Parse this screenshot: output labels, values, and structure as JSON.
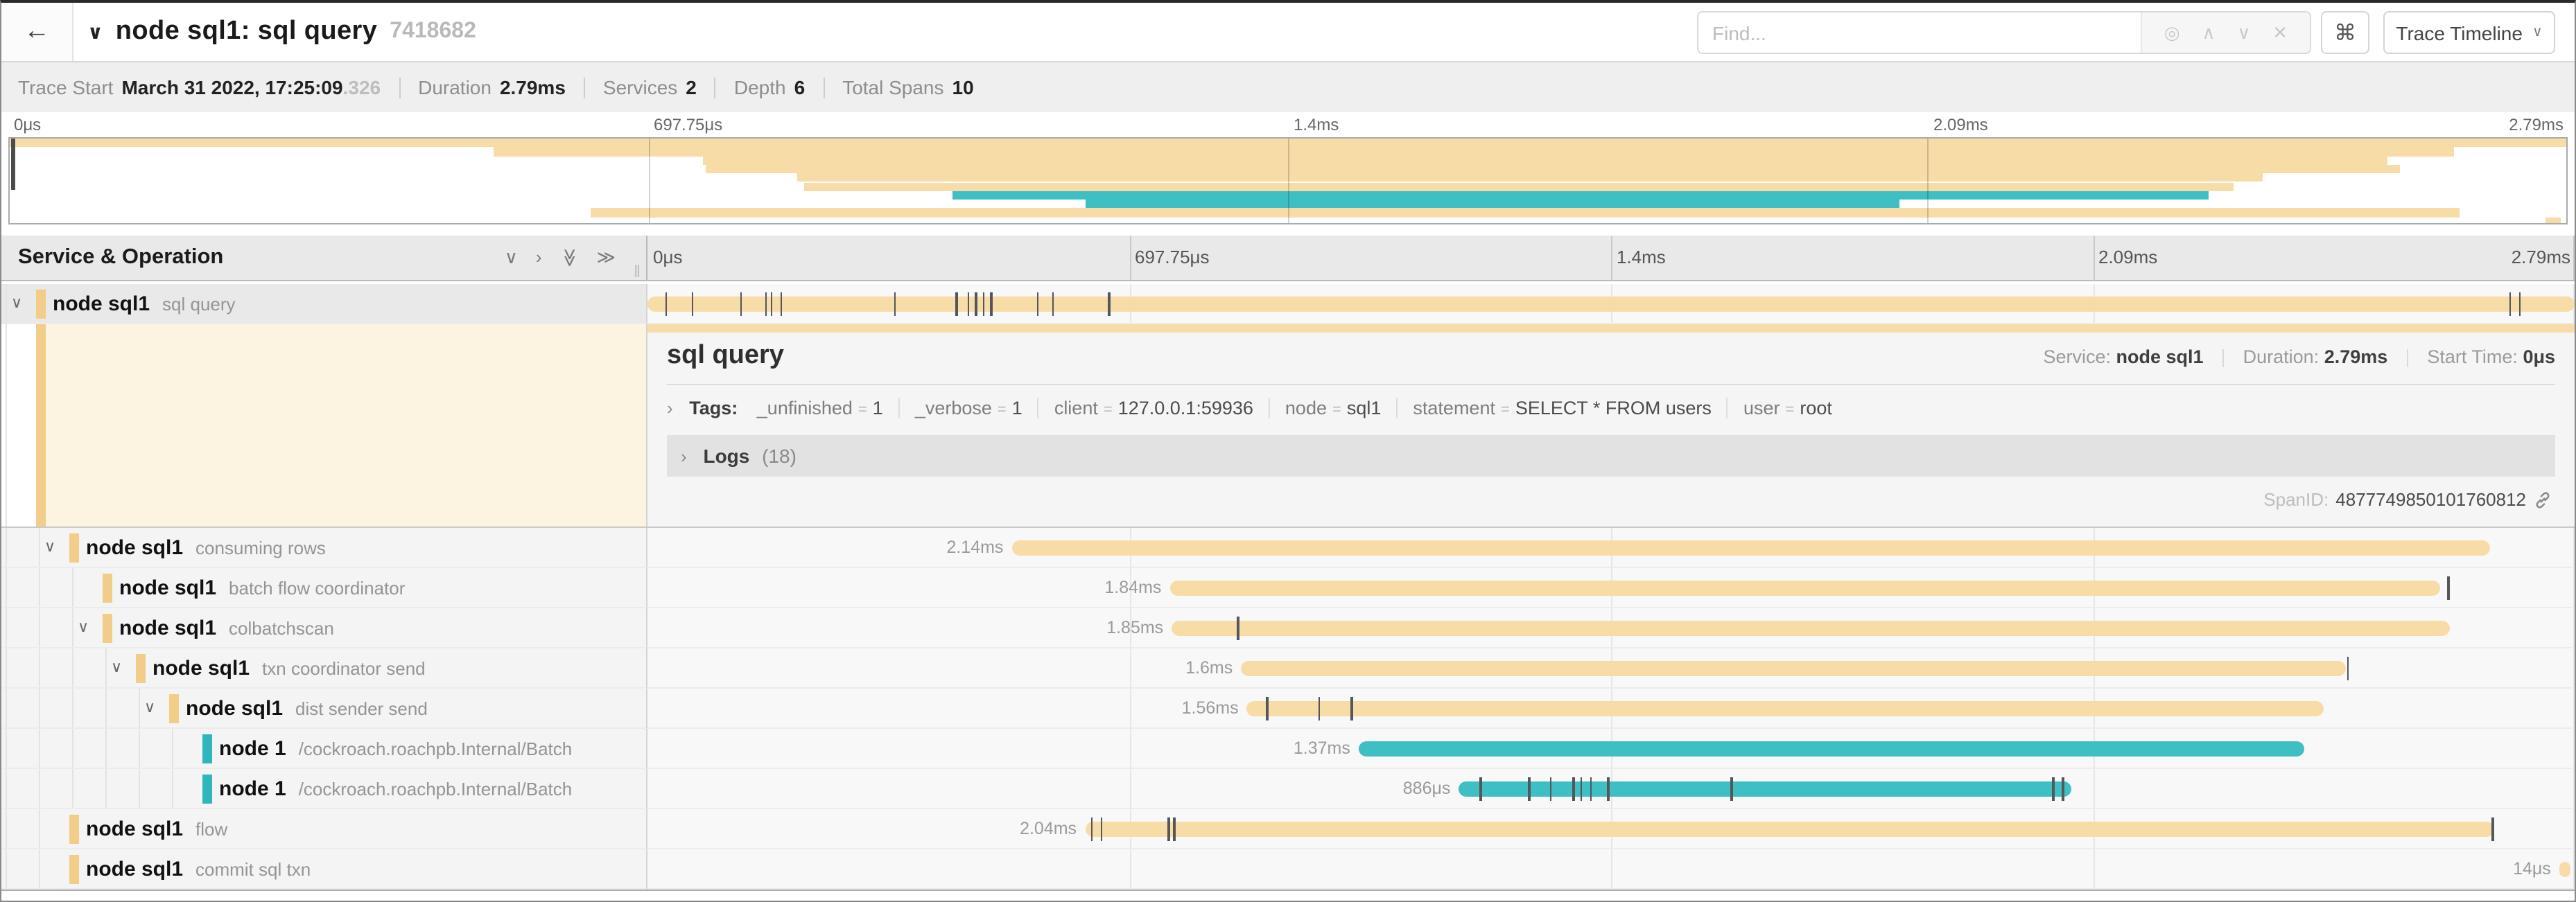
{
  "header": {
    "title": "node sql1: sql query",
    "trace_id": "7418682",
    "find_placeholder": "Find...",
    "shortcut_glyph": "⌘",
    "view_button": "Trace Timeline"
  },
  "stats": {
    "trace_start_label": "Trace Start",
    "trace_start_value": "March 31 2022, 17:25:09",
    "trace_start_frac": ".326",
    "duration_label": "Duration",
    "duration_value": "2.79ms",
    "services_label": "Services",
    "services_value": "2",
    "depth_label": "Depth",
    "depth_value": "6",
    "total_label": "Total Spans",
    "total_value": "10"
  },
  "ruler_ticks": [
    "0μs",
    "697.75μs",
    "1.4ms",
    "2.09ms",
    "2.79ms"
  ],
  "left_header": {
    "title": "Service & Operation"
  },
  "icons": {
    "back": "←",
    "chevron_down": "∨",
    "chevron_right": "›",
    "expand_all": "≫",
    "locate": "◎",
    "up": "∧",
    "down": "∨",
    "close": "✕",
    "grip": "‖"
  },
  "detail": {
    "title": "sql query",
    "service_label": "Service:",
    "service_value": "node sql1",
    "duration_label": "Duration:",
    "duration_value": "2.79ms",
    "start_label": "Start Time:",
    "start_value": "0μs",
    "tags_label": "Tags:",
    "tags": [
      {
        "key": "_unfinished",
        "value": "1"
      },
      {
        "key": "_verbose",
        "value": "1"
      },
      {
        "key": "client",
        "value": "127.0.0.1:59936"
      },
      {
        "key": "node",
        "value": "sql1"
      },
      {
        "key": "statement",
        "value": "SELECT * FROM users"
      },
      {
        "key": "user",
        "value": "root"
      }
    ],
    "logs_label": "Logs",
    "logs_count": "(18)",
    "spanid_label": "SpanID:",
    "spanid_value": "4877749850101760812"
  },
  "spans": [
    {
      "service": "node sql1",
      "operation": "sql query",
      "depth": 0,
      "color": "tan",
      "expander": true,
      "selected": true,
      "start": 0,
      "width": 100,
      "duration": "",
      "ticks": [
        0.9,
        2.3,
        4.8,
        6.1,
        6.4,
        6.9,
        12.8,
        16.0,
        16.6,
        17.0,
        17.4,
        17.8,
        20.2,
        21.0,
        23.9,
        96.6,
        97.1
      ]
    },
    {
      "service": "node sql1",
      "operation": "consuming rows",
      "depth": 1,
      "color": "tan",
      "expander": true,
      "start": 18.9,
      "width": 76.7,
      "duration": "2.14ms",
      "ticks": []
    },
    {
      "service": "node sql1",
      "operation": "batch flow coordinator",
      "depth": 2,
      "color": "tan",
      "expander": false,
      "start": 27.1,
      "width": 65.9,
      "duration": "1.84ms",
      "ticks": [
        93.4
      ]
    },
    {
      "service": "node sql1",
      "operation": "colbatchscan",
      "depth": 2,
      "color": "tan",
      "expander": true,
      "start": 27.2,
      "width": 66.3,
      "duration": "1.85ms",
      "ticks": [
        30.6
      ]
    },
    {
      "service": "node sql1",
      "operation": "txn coordinator send",
      "depth": 3,
      "color": "tan",
      "expander": true,
      "start": 30.8,
      "width": 57.3,
      "duration": "1.6ms",
      "ticks": [
        88.2
      ]
    },
    {
      "service": "node sql1",
      "operation": "dist sender send",
      "depth": 4,
      "color": "tan",
      "expander": true,
      "start": 31.1,
      "width": 55.9,
      "duration": "1.56ms",
      "ticks": [
        32.1,
        34.8,
        36.5
      ]
    },
    {
      "service": "node 1",
      "operation": "/cockroach.roachpb.Internal/Batch",
      "depth": 5,
      "color": "teal",
      "expander": false,
      "start": 36.9,
      "width": 49.1,
      "duration": "1.37ms",
      "ticks": []
    },
    {
      "service": "node 1",
      "operation": "/cockroach.roachpb.Internal/Batch",
      "depth": 5,
      "color": "teal",
      "expander": false,
      "start": 42.1,
      "width": 31.8,
      "duration": "886μs",
      "ticks": [
        43.2,
        45.7,
        46.8,
        48.0,
        48.4,
        48.9,
        49.8,
        56.2,
        72.9,
        73.4
      ]
    },
    {
      "service": "node sql1",
      "operation": "flow",
      "depth": 1,
      "color": "tan",
      "expander": false,
      "start": 22.7,
      "width": 73.1,
      "duration": "2.04ms",
      "ticks": [
        23.0,
        23.5,
        27.0,
        27.3,
        95.7
      ]
    },
    {
      "service": "node sql1",
      "operation": "commit sql txn",
      "depth": 1,
      "color": "tan",
      "expander": false,
      "start": 99.2,
      "width": 0.6,
      "duration": "14μs",
      "ticks": []
    }
  ],
  "colors": {
    "tan": "#f8dca8",
    "tan_band": "#f2cd8a",
    "teal": "#3dbfc4",
    "teal_band": "#2fb6bc",
    "tick": "#54565a"
  }
}
